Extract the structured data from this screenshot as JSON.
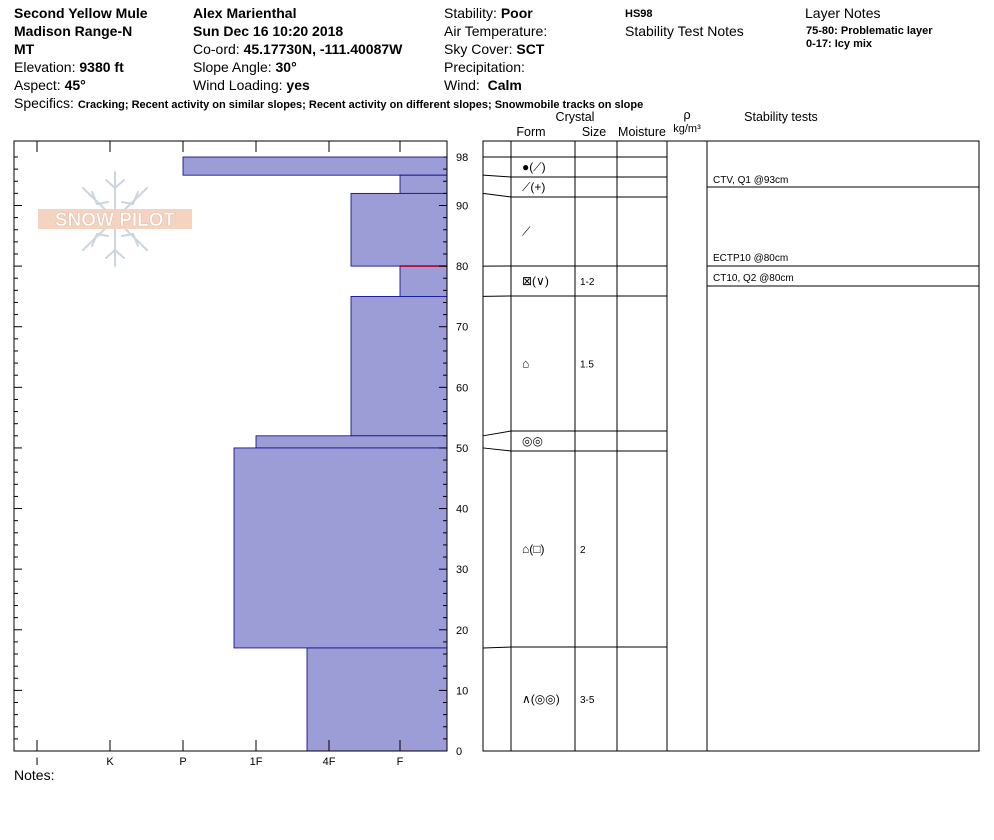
{
  "header": {
    "location": "Second Yellow Mule",
    "range": "Madison Range-N",
    "state": "MT",
    "elevation_label": "Elevation:",
    "elevation": "9380 ft",
    "aspect_label": "Aspect:",
    "aspect": "45°",
    "observer": "Alex Marienthal",
    "date": "Sun Dec 16 10:20 2018",
    "coord_label": "Co-ord:",
    "coord": "45.17730N, -111.40087W",
    "slope_label": "Slope Angle:",
    "slope": "30°",
    "wind_loading_label": "Wind Loading:",
    "wind_loading": "yes",
    "stability_label": "Stability:",
    "stability": "Poor",
    "air_temp_label": "Air Temperature:",
    "sky_label": "Sky Cover:",
    "sky": "SCT",
    "precip_label": "Precipitation:",
    "wind_label": "Wind:",
    "wind": "Calm",
    "hs": "HS98",
    "stability_notes_label": "Stability Test Notes",
    "layer_notes_label": "Layer Notes",
    "layer_notes": [
      "75-80: Problematic layer",
      "0-17: Icy mix"
    ],
    "specifics_label": "Specifics:",
    "specifics": "Cracking; Recent activity on similar slopes; Recent activity on different slopes; Snowmobile tracks on slope",
    "notes_label": "Notes:"
  },
  "logo": {
    "text": "SNOW PILOT"
  },
  "table_headers": {
    "crystal": "Crystal",
    "form": "Form",
    "size": "Size",
    "moisture": "Moisture",
    "rho": "ρ",
    "density_unit": "kg/m³",
    "stability_tests": "Stability tests"
  },
  "chart_data": {
    "type": "bar",
    "title": "",
    "xlabel": "",
    "ylabel": "",
    "x_categories": [
      "I",
      "K",
      "P",
      "1F",
      "4F",
      "F"
    ],
    "ylim": [
      0,
      98
    ],
    "y_ticks": [
      0,
      10,
      20,
      30,
      40,
      50,
      60,
      70,
      80,
      90,
      98
    ],
    "hardness_profile": [
      {
        "bottom": 95,
        "top": 98,
        "hardness": "P"
      },
      {
        "bottom": 92,
        "top": 95,
        "hardness": "F"
      },
      {
        "bottom": 80,
        "top": 92,
        "hardness": "4F+"
      },
      {
        "bottom": 75,
        "top": 80,
        "hardness": "F"
      },
      {
        "bottom": 52,
        "top": 75,
        "hardness": "4F+"
      },
      {
        "bottom": 50,
        "top": 52,
        "hardness": "1F"
      },
      {
        "bottom": 17,
        "top": 50,
        "hardness": "1F-"
      },
      {
        "bottom": 0,
        "top": 17,
        "hardness": "4F-"
      }
    ],
    "problem_layer_line": 80,
    "layers": [
      {
        "bottom": 95,
        "top": 98,
        "form": "●(⟋)",
        "size": ""
      },
      {
        "bottom": 92,
        "top": 95,
        "form": "⟋(+)",
        "size": ""
      },
      {
        "bottom": 80,
        "top": 92,
        "form": "⟋",
        "size": ""
      },
      {
        "bottom": 75,
        "top": 80,
        "form": "⊠(∨)",
        "size": "1-2"
      },
      {
        "bottom": 52,
        "top": 75,
        "form": "⌂",
        "size": "1.5"
      },
      {
        "bottom": 50,
        "top": 52,
        "form": "◎◎",
        "size": ""
      },
      {
        "bottom": 17,
        "top": 50,
        "form": "⌂(□)",
        "size": "2"
      },
      {
        "bottom": 0,
        "top": 17,
        "form": "∧(◎◎)",
        "size": "3-5"
      }
    ],
    "stability_tests": [
      {
        "depth": 93,
        "label": "CTV, Q1 @93cm"
      },
      {
        "depth": 80,
        "label": "ECTP10 @80cm"
      },
      {
        "depth": 80,
        "label": "CT10, Q2 @80cm"
      }
    ]
  },
  "colors": {
    "bar_fill": "#9c9cd6",
    "bar_stroke": "#00008b",
    "problem_line": "#b0002a"
  }
}
